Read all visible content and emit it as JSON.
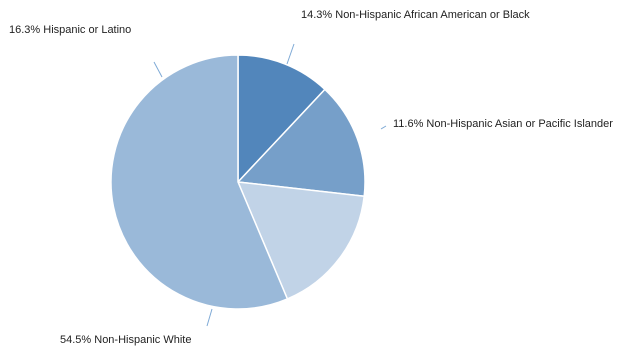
{
  "chart_data": {
    "type": "pie",
    "title": "",
    "start_angle_deg": 90,
    "direction": "clockwise",
    "legend": "none",
    "slices": [
      {
        "label": "11.6% Non-Hispanic Asian or Pacific Islander",
        "category": "Non-Hispanic Asian or Pacific Islander",
        "value": 11.6,
        "color": "#5286bb"
      },
      {
        "label": "14.3% Non-Hispanic African American or Black",
        "category": "Non-Hispanic African American or Black",
        "value": 14.3,
        "color": "#769fc9"
      },
      {
        "label": "16.3% Hispanic or Latino",
        "category": "Hispanic or Latino",
        "value": 16.3,
        "color": "#c1d3e7"
      },
      {
        "label": "54.5% Non-Hispanic White",
        "category": "Non-Hispanic White",
        "value": 54.5,
        "color": "#9ab9d9"
      }
    ],
    "leader_color": "#7faad6"
  }
}
